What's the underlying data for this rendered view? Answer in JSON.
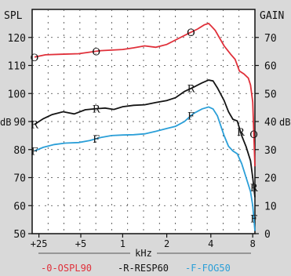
{
  "chart_data": {
    "type": "line",
    "x_label": "kHz",
    "x_ticks": [
      {
        "label": "+25",
        "pos": 0.02
      },
      {
        "label": "+5",
        "pos": 0.21
      },
      {
        "label": "1",
        "pos": 0.4
      },
      {
        "label": "2",
        "pos": 0.6
      },
      {
        "label": "4",
        "pos": 0.8
      },
      {
        "label": "8",
        "pos": 0.99
      }
    ],
    "x_range": [
      0,
      1
    ],
    "left_axis": {
      "title": "SPL",
      "unit": "dB",
      "range": [
        50,
        130
      ],
      "ticks": [
        50,
        60,
        70,
        80,
        90,
        100,
        110,
        120
      ]
    },
    "right_axis": {
      "title": "GAIN",
      "unit": "dB",
      "range": [
        0,
        80
      ],
      "ticks": [
        0,
        10,
        20,
        30,
        40,
        50,
        60,
        70
      ]
    },
    "grid": true,
    "legend_position": "bottom",
    "series": [
      {
        "name": "-0-OSPL90",
        "marker": "O",
        "color": "#e0303a",
        "points": [
          [
            0.0,
            113
          ],
          [
            0.05,
            113.8
          ],
          [
            0.12,
            114
          ],
          [
            0.2,
            114.2
          ],
          [
            0.3,
            115.3
          ],
          [
            0.4,
            115.7
          ],
          [
            0.45,
            116.3
          ],
          [
            0.5,
            117
          ],
          [
            0.55,
            116.5
          ],
          [
            0.6,
            117.5
          ],
          [
            0.65,
            119.5
          ],
          [
            0.7,
            121.5
          ],
          [
            0.74,
            123
          ],
          [
            0.77,
            124.5
          ],
          [
            0.79,
            125
          ],
          [
            0.8,
            124.2
          ],
          [
            0.82,
            122.5
          ],
          [
            0.86,
            117
          ],
          [
            0.89,
            114
          ],
          [
            0.91,
            112.2
          ],
          [
            0.93,
            108
          ],
          [
            0.95,
            107
          ],
          [
            0.97,
            105.5
          ],
          [
            0.98,
            103
          ],
          [
            0.99,
            97
          ],
          [
            1.0,
            74
          ]
        ],
        "markers_at": [
          0.0,
          0.28,
          0.71,
          0.995
        ]
      },
      {
        "name": "-R-RESP60",
        "marker": "R",
        "color": "#141414",
        "points": [
          [
            0.0,
            89
          ],
          [
            0.04,
            91
          ],
          [
            0.08,
            92.5
          ],
          [
            0.13,
            93.5
          ],
          [
            0.18,
            92.7
          ],
          [
            0.23,
            94.2
          ],
          [
            0.27,
            94.5
          ],
          [
            0.32,
            94.8
          ],
          [
            0.36,
            94.3
          ],
          [
            0.4,
            95.3
          ],
          [
            0.45,
            95.8
          ],
          [
            0.5,
            96
          ],
          [
            0.55,
            96.8
          ],
          [
            0.6,
            97.5
          ],
          [
            0.64,
            98.5
          ],
          [
            0.68,
            100.7
          ],
          [
            0.72,
            102.2
          ],
          [
            0.76,
            103.8
          ],
          [
            0.79,
            104.8
          ],
          [
            0.81,
            104.5
          ],
          [
            0.83,
            102
          ],
          [
            0.86,
            97.5
          ],
          [
            0.88,
            93.5
          ],
          [
            0.9,
            90.8
          ],
          [
            0.92,
            90.2
          ],
          [
            0.94,
            85
          ],
          [
            0.96,
            81
          ],
          [
            0.98,
            76
          ],
          [
            0.99,
            70
          ],
          [
            1.0,
            63
          ]
        ],
        "markers_at": [
          0.0,
          0.28,
          0.71,
          0.935,
          0.995
        ]
      },
      {
        "name": "-F-FOG50",
        "marker": "F",
        "color": "#2b9fd8",
        "points": [
          [
            0.0,
            79.5
          ],
          [
            0.04,
            80.8
          ],
          [
            0.09,
            81.8
          ],
          [
            0.14,
            82.3
          ],
          [
            0.2,
            82.5
          ],
          [
            0.25,
            83.2
          ],
          [
            0.3,
            84.3
          ],
          [
            0.35,
            85
          ],
          [
            0.4,
            85.2
          ],
          [
            0.45,
            85.3
          ],
          [
            0.5,
            85.6
          ],
          [
            0.55,
            86.5
          ],
          [
            0.6,
            87.5
          ],
          [
            0.64,
            88.3
          ],
          [
            0.68,
            90
          ],
          [
            0.72,
            92.8
          ],
          [
            0.76,
            94.5
          ],
          [
            0.79,
            95.2
          ],
          [
            0.81,
            94.5
          ],
          [
            0.83,
            92
          ],
          [
            0.86,
            85
          ],
          [
            0.88,
            81.2
          ],
          [
            0.9,
            79.5
          ],
          [
            0.92,
            78.5
          ],
          [
            0.94,
            75
          ],
          [
            0.96,
            70
          ],
          [
            0.98,
            65
          ],
          [
            0.99,
            60
          ],
          [
            1.0,
            51
          ]
        ],
        "markers_at": [
          0.0,
          0.28,
          0.71,
          0.995
        ]
      }
    ]
  }
}
